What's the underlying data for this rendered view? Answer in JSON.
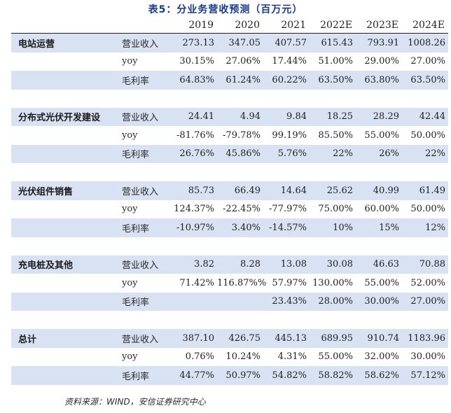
{
  "title": "表5：分业务营收预测（百万元）",
  "columns": [
    "2019",
    "2020",
    "2021",
    "2022E",
    "2023E",
    "2024E"
  ],
  "segments": [
    {
      "name": "电站运营",
      "rows": [
        {
          "label": "营业收入",
          "values": [
            "273.13",
            "347.05",
            "407.57",
            "615.43",
            "793.91",
            "1008.26"
          ]
        },
        {
          "label": "yoy",
          "values": [
            "30.15%",
            "27.06%",
            "17.44%",
            "51.00%",
            "29.00%",
            "27.00%"
          ]
        },
        {
          "label": "毛利率",
          "values": [
            "64.83%",
            "61.24%",
            "60.22%",
            "63.50%",
            "63.80%",
            "63.50%"
          ]
        }
      ]
    },
    {
      "name": "分布式光伏开发建设",
      "rows": [
        {
          "label": "营业收入",
          "values": [
            "24.41",
            "4.94",
            "9.84",
            "18.25",
            "28.29",
            "42.44"
          ]
        },
        {
          "label": "yoy",
          "values": [
            "-81.76%",
            "-79.78%",
            "99.19%",
            "85.50%",
            "55.00%",
            "50.00%"
          ]
        },
        {
          "label": "毛利率",
          "values": [
            "26.76%",
            "45.86%",
            "5.76%",
            "22%",
            "26%",
            "22%"
          ]
        }
      ]
    },
    {
      "name": "光伏组件销售",
      "rows": [
        {
          "label": "营业收入",
          "values": [
            "85.73",
            "66.49",
            "14.64",
            "25.62",
            "40.99",
            "61.49"
          ]
        },
        {
          "label": "yoy",
          "values": [
            "124.37%",
            "-22.45%",
            "-77.97%",
            "75.00%",
            "60.00%",
            "50.00%"
          ]
        },
        {
          "label": "毛利率",
          "values": [
            "-10.97%",
            "3.40%",
            "-14.57%",
            "10%",
            "15%",
            "12%"
          ]
        }
      ]
    },
    {
      "name": "充电桩及其他",
      "rows": [
        {
          "label": "营业收入",
          "values": [
            "3.82",
            "8.28",
            "13.08",
            "30.08",
            "46.63",
            "70.88"
          ]
        },
        {
          "label": "yoy",
          "values": [
            "71.42%",
            "116.87%%",
            "57.97%",
            "130.00%",
            "55.00%",
            "52.00%"
          ]
        },
        {
          "label": "毛利率",
          "values": [
            "",
            "",
            "23.43%",
            "28.00%",
            "30.00%",
            "27.00%"
          ]
        }
      ]
    },
    {
      "name": "总计",
      "rows": [
        {
          "label": "营业收入",
          "values": [
            "387.10",
            "426.75",
            "445.13",
            "689.95",
            "910.74",
            "1183.96"
          ]
        },
        {
          "label": "yoy",
          "values": [
            "0.76%",
            "10.24%",
            "4.31%",
            "55.00%",
            "32.00%",
            "30.00%"
          ]
        },
        {
          "label": "毛利率",
          "values": [
            "44.77%",
            "50.97%",
            "54.82%",
            "58.82%",
            "58.62%",
            "57.12%"
          ]
        }
      ]
    }
  ],
  "source": "资料来源：WIND，安信证券研究中心",
  "colors": {
    "title": "#1a3a8c",
    "shade": "#d9e2f3"
  }
}
